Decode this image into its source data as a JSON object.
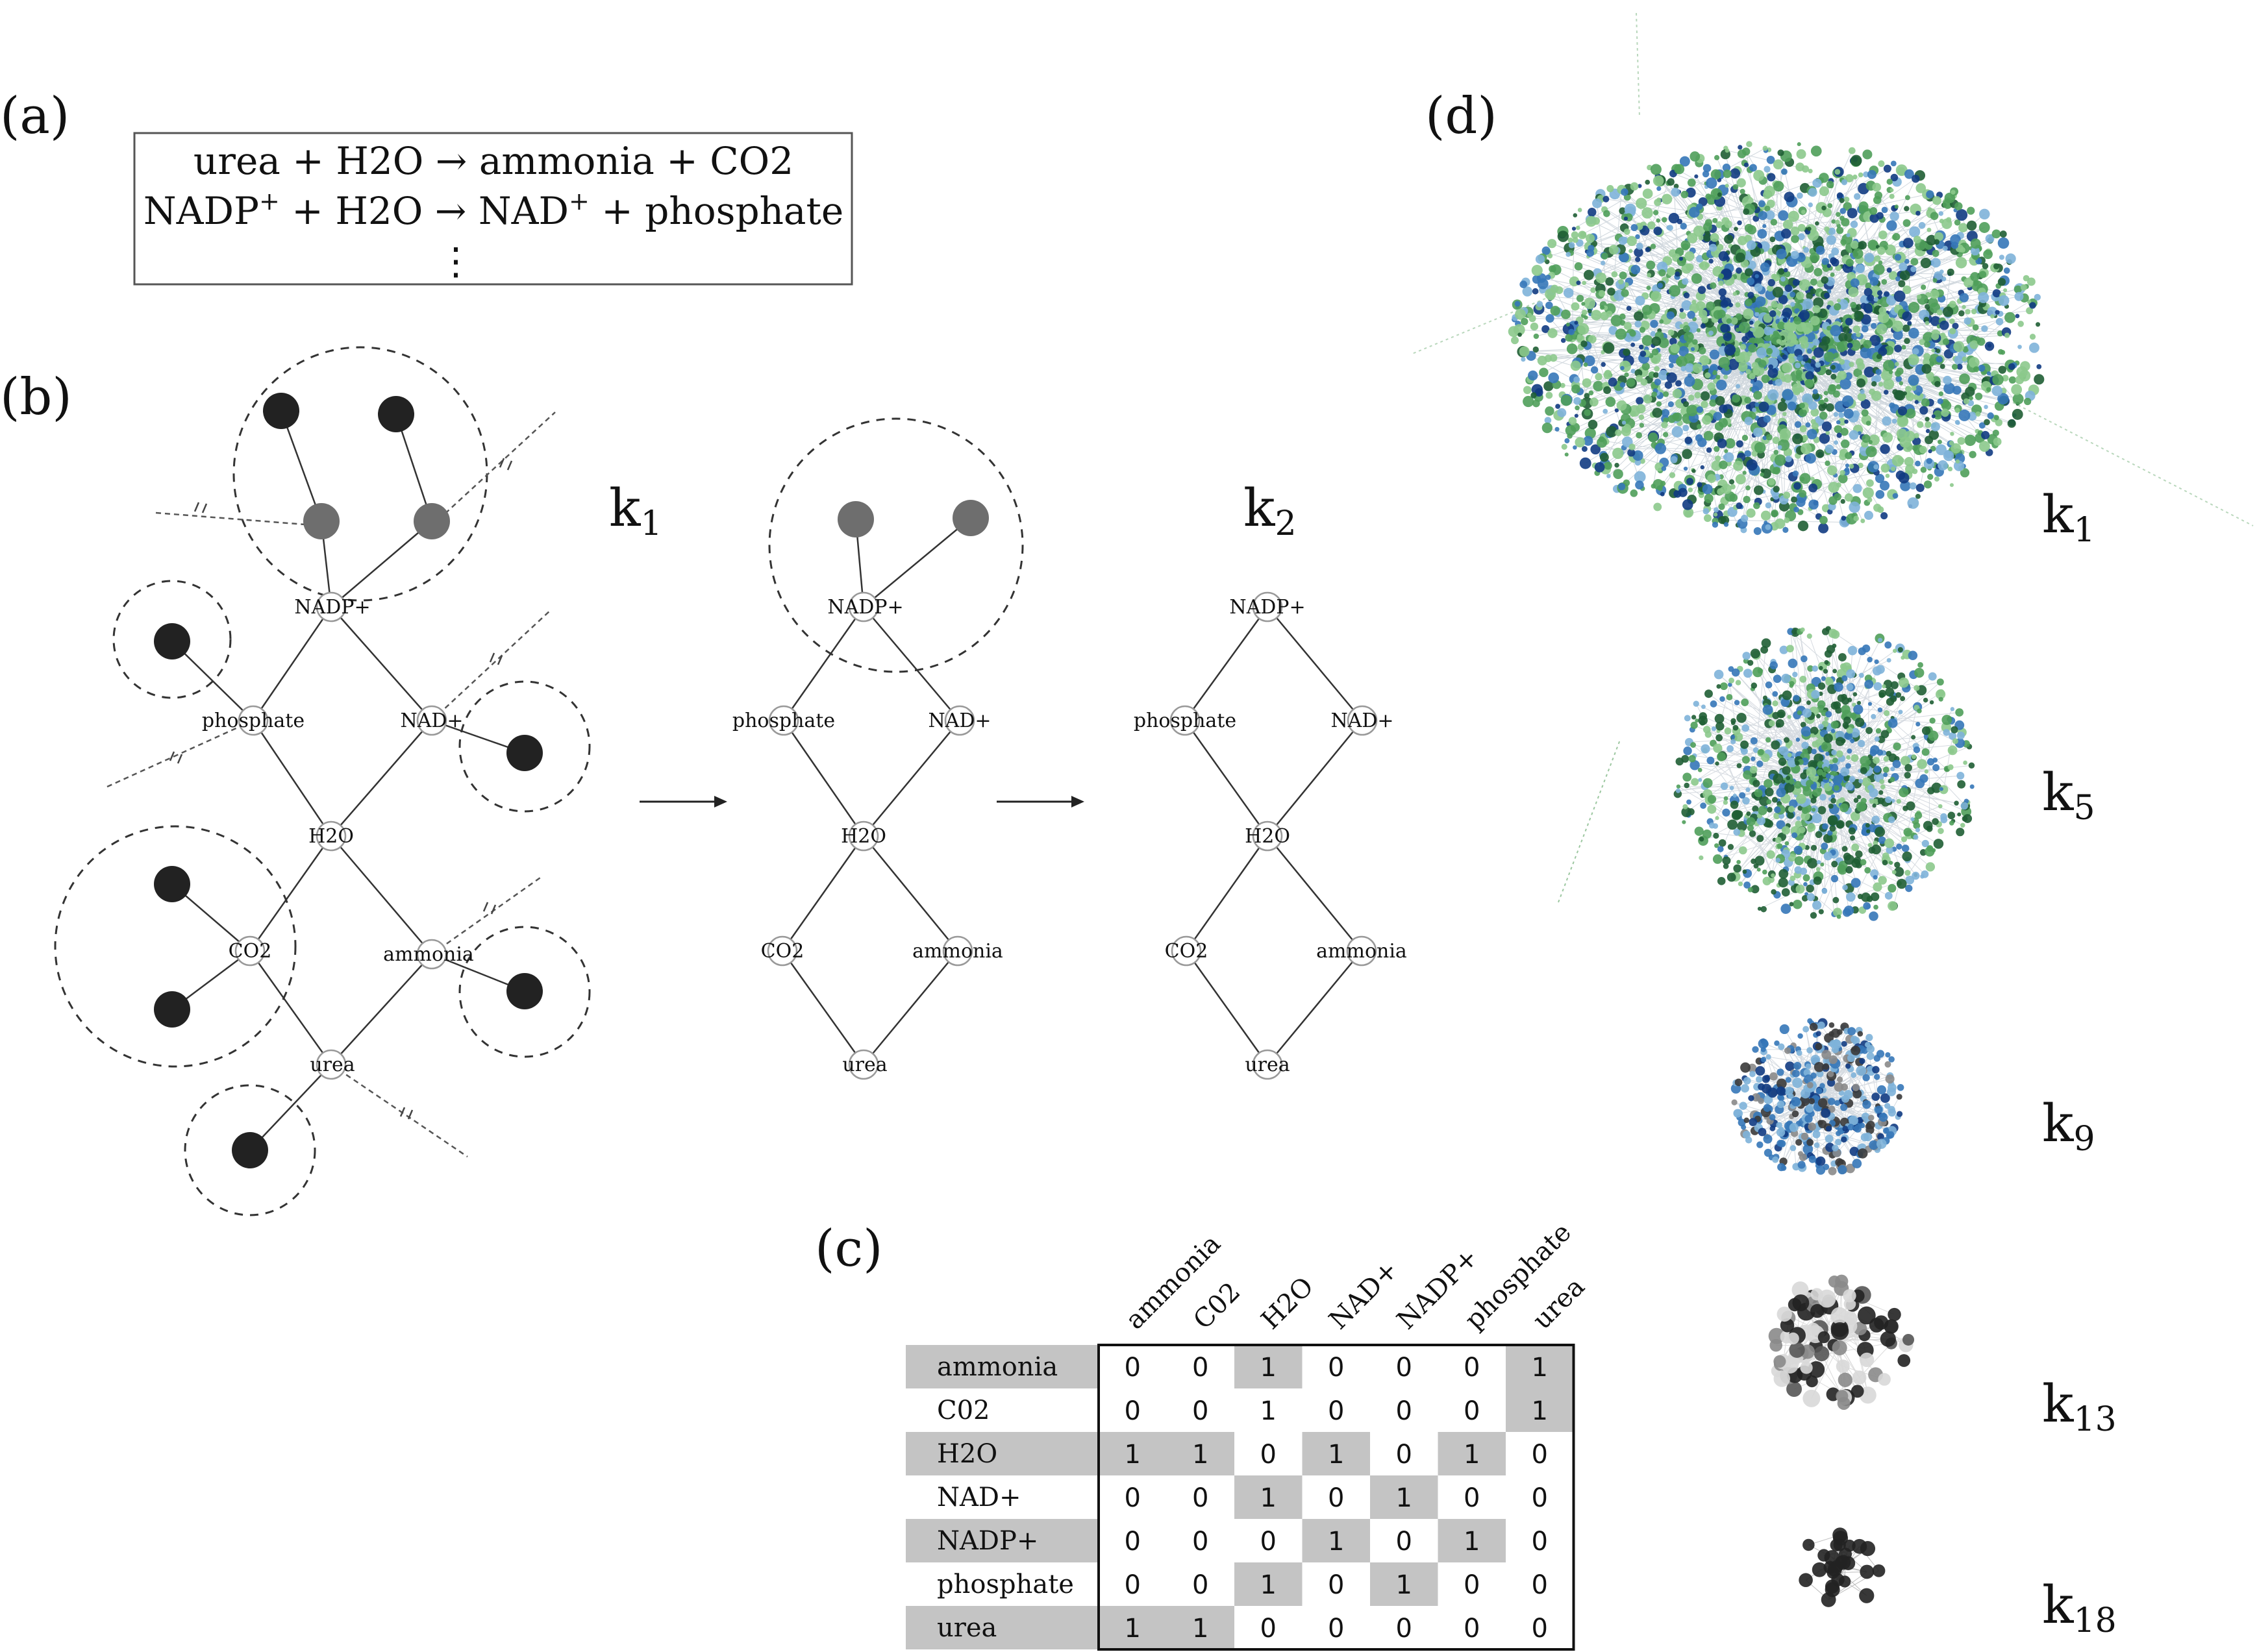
{
  "panels": {
    "a": "(a)",
    "b": "(b)",
    "c": "(c)",
    "d": "(d)"
  },
  "reactions": {
    "line1": "urea + H2O → ammonia + CO2",
    "line2_left": "NADP",
    "line2_mid": " + H2O → NAD",
    "line2_right": " + phosphate",
    "superscript": "+",
    "ellipsis": "⋮"
  },
  "network": {
    "labels": {
      "nadp": "NADP+",
      "phosphate": "phosphate",
      "nad": "NAD+",
      "h2o": "H2O",
      "co2": "CO2",
      "ammonia": "ammonia",
      "urea": "urea"
    },
    "k_mid": "k",
    "k_mid_sub": "1",
    "k_right": "k",
    "k_right_sub": "2"
  },
  "matrix": {
    "columns": [
      "ammonia",
      "C02",
      "H2O",
      "NAD+",
      "NADP+",
      "phosphate",
      "urea"
    ],
    "rows": [
      "ammonia",
      "C02",
      "H2O",
      "NAD+",
      "NADP+",
      "phosphate",
      "urea"
    ],
    "values": [
      [
        0,
        0,
        1,
        0,
        0,
        0,
        1
      ],
      [
        0,
        0,
        1,
        0,
        0,
        0,
        1
      ],
      [
        1,
        1,
        0,
        1,
        0,
        1,
        0
      ],
      [
        0,
        0,
        1,
        0,
        1,
        0,
        0
      ],
      [
        0,
        0,
        0,
        1,
        0,
        1,
        0
      ],
      [
        0,
        0,
        1,
        0,
        1,
        0,
        0
      ],
      [
        1,
        1,
        0,
        0,
        0,
        0,
        0
      ]
    ]
  },
  "cores": [
    {
      "k": "k",
      "sub": "1"
    },
    {
      "k": "k",
      "sub": "5"
    },
    {
      "k": "k",
      "sub": "9"
    },
    {
      "k": "k",
      "sub": "13"
    },
    {
      "k": "k",
      "sub": "18"
    }
  ],
  "colors": {
    "green_light": "#8cc98c",
    "green_mid": "#4f9e5a",
    "green_dark": "#1f5e34",
    "blue_light": "#7eb3d9",
    "blue_mid": "#3577b8",
    "blue_dark": "#113b82",
    "gray_light": "#d8d8d8",
    "gray_mid": "#8a8a8a",
    "black_node": "#222222",
    "shade": "#c4c4c4"
  }
}
